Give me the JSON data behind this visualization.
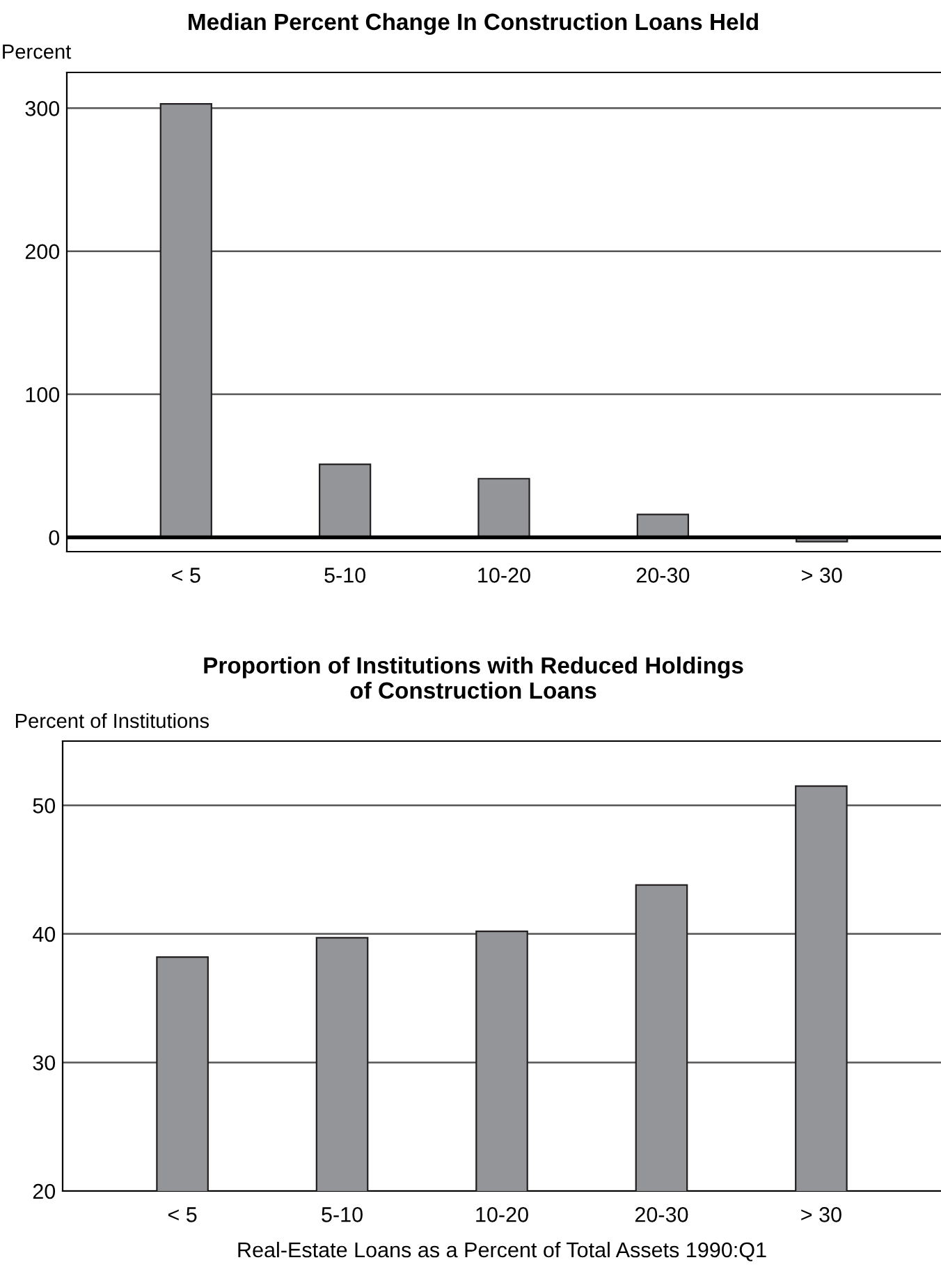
{
  "chart_data": [
    {
      "type": "bar",
      "title": "Median Percent Change In Construction Loans Held",
      "ylabel": "Percent",
      "categories": [
        "< 5",
        "5-10",
        "10-20",
        "20-30",
        "> 30"
      ],
      "values": [
        303,
        51,
        41,
        16,
        -3
      ],
      "color": "#939598",
      "ylim": [
        -10,
        325
      ],
      "yticks": [
        0,
        100,
        200,
        300
      ],
      "grid": "y",
      "ref_lines": [
        {
          "axis": "y",
          "value": 0,
          "color": "#000000"
        }
      ]
    },
    {
      "type": "bar",
      "title": "Proportion of Institutions with Reduced Holdings\nof Construction Loans",
      "ylabel": "Percent of Institutions",
      "xlabel": "Real-Estate Loans as a Percent of Total Assets 1990:Q1",
      "categories": [
        "< 5",
        "5-10",
        "10-20",
        "20-30",
        "> 30"
      ],
      "values": [
        38.2,
        39.7,
        40.2,
        43.8,
        51.5
      ],
      "color": "#939598",
      "ylim": [
        20,
        55
      ],
      "yticks": [
        20,
        30,
        40,
        50
      ],
      "grid": "y"
    }
  ]
}
